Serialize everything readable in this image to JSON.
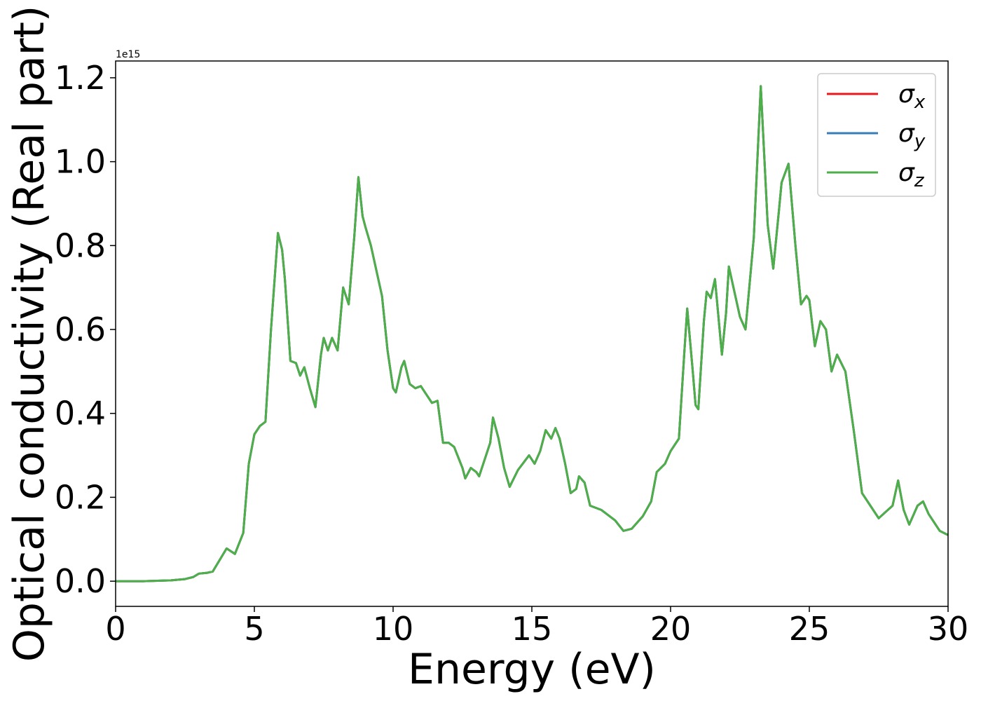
{
  "chart_data": {
    "type": "line",
    "xlabel": "Energy (eV)",
    "ylabel": "Optical conductivity (Real part)",
    "y_offset_label": "1e15",
    "x": [
      0,
      1,
      2,
      2.5,
      2.8,
      3,
      3.3,
      3.5,
      4.0,
      4.3,
      4.6,
      4.8,
      5.0,
      5.2,
      5.4,
      5.6,
      5.85,
      6.0,
      6.1,
      6.3,
      6.5,
      6.65,
      6.8,
      7.0,
      7.2,
      7.4,
      7.5,
      7.65,
      7.8,
      8.0,
      8.2,
      8.4,
      8.6,
      8.75,
      8.9,
      9.0,
      9.2,
      9.5,
      9.6,
      9.8,
      10.0,
      10.1,
      10.3,
      10.4,
      10.6,
      10.8,
      11.0,
      11.2,
      11.4,
      11.6,
      11.8,
      12.0,
      12.2,
      12.5,
      12.6,
      12.8,
      13.0,
      13.1,
      13.3,
      13.5,
      13.6,
      13.8,
      14.0,
      14.2,
      14.5,
      14.9,
      15.1,
      15.3,
      15.5,
      15.7,
      15.85,
      16.0,
      16.2,
      16.4,
      16.6,
      16.7,
      16.9,
      17.1,
      17.5,
      18.0,
      18.3,
      18.6,
      19.0,
      19.3,
      19.5,
      19.8,
      20.0,
      20.3,
      20.5,
      20.6,
      20.8,
      20.9,
      21.0,
      21.2,
      21.3,
      21.45,
      21.6,
      21.85,
      22.0,
      22.1,
      22.3,
      22.5,
      22.7,
      23.0,
      23.25,
      23.5,
      23.7,
      23.9,
      24.0,
      24.25,
      24.5,
      24.7,
      24.9,
      25.0,
      25.2,
      25.4,
      25.6,
      25.8,
      26.0,
      26.3,
      26.6,
      26.9,
      27.2,
      27.5,
      28.0,
      28.2,
      28.4,
      28.6,
      28.9,
      29.1,
      29.3,
      29.7,
      30.0
    ],
    "series": [
      {
        "name": "σx",
        "color": "#e41a1c",
        "values": [
          0,
          0,
          0.002,
          0.005,
          0.01,
          0.018,
          0.02,
          0.023,
          0.078,
          0.065,
          0.115,
          0.28,
          0.35,
          0.37,
          0.38,
          0.6,
          0.83,
          0.79,
          0.72,
          0.525,
          0.52,
          0.49,
          0.51,
          0.46,
          0.415,
          0.54,
          0.58,
          0.55,
          0.58,
          0.55,
          0.7,
          0.66,
          0.82,
          0.963,
          0.87,
          0.845,
          0.8,
          0.71,
          0.68,
          0.55,
          0.46,
          0.45,
          0.51,
          0.525,
          0.47,
          0.46,
          0.465,
          0.445,
          0.425,
          0.43,
          0.33,
          0.33,
          0.32,
          0.27,
          0.245,
          0.27,
          0.26,
          0.25,
          0.29,
          0.33,
          0.39,
          0.34,
          0.27,
          0.225,
          0.265,
          0.3,
          0.28,
          0.31,
          0.36,
          0.34,
          0.365,
          0.34,
          0.28,
          0.21,
          0.22,
          0.25,
          0.235,
          0.18,
          0.17,
          0.145,
          0.12,
          0.125,
          0.155,
          0.19,
          0.26,
          0.28,
          0.31,
          0.34,
          0.55,
          0.65,
          0.5,
          0.42,
          0.41,
          0.62,
          0.69,
          0.675,
          0.72,
          0.54,
          0.64,
          0.75,
          0.69,
          0.63,
          0.6,
          0.82,
          1.18,
          0.85,
          0.745,
          0.88,
          0.95,
          0.995,
          0.8,
          0.66,
          0.68,
          0.67,
          0.56,
          0.62,
          0.6,
          0.5,
          0.54,
          0.5,
          0.36,
          0.21,
          0.18,
          0.15,
          0.18,
          0.24,
          0.17,
          0.135,
          0.18,
          0.19,
          0.16,
          0.12,
          0.11
        ]
      },
      {
        "name": "σy",
        "color": "#377eb8",
        "values": [
          0,
          0,
          0.002,
          0.005,
          0.01,
          0.018,
          0.02,
          0.023,
          0.078,
          0.065,
          0.115,
          0.28,
          0.35,
          0.37,
          0.38,
          0.6,
          0.83,
          0.79,
          0.72,
          0.525,
          0.52,
          0.49,
          0.51,
          0.46,
          0.415,
          0.54,
          0.58,
          0.55,
          0.58,
          0.55,
          0.7,
          0.66,
          0.82,
          0.963,
          0.87,
          0.845,
          0.8,
          0.71,
          0.68,
          0.55,
          0.46,
          0.45,
          0.51,
          0.525,
          0.47,
          0.46,
          0.465,
          0.445,
          0.425,
          0.43,
          0.33,
          0.33,
          0.32,
          0.27,
          0.245,
          0.27,
          0.26,
          0.25,
          0.29,
          0.33,
          0.39,
          0.34,
          0.27,
          0.225,
          0.265,
          0.3,
          0.28,
          0.31,
          0.36,
          0.34,
          0.365,
          0.34,
          0.28,
          0.21,
          0.22,
          0.25,
          0.235,
          0.18,
          0.17,
          0.145,
          0.12,
          0.125,
          0.155,
          0.19,
          0.26,
          0.28,
          0.31,
          0.34,
          0.55,
          0.65,
          0.5,
          0.42,
          0.41,
          0.62,
          0.69,
          0.675,
          0.72,
          0.54,
          0.64,
          0.75,
          0.69,
          0.63,
          0.6,
          0.82,
          1.18,
          0.85,
          0.745,
          0.88,
          0.95,
          0.995,
          0.8,
          0.66,
          0.68,
          0.67,
          0.56,
          0.62,
          0.6,
          0.5,
          0.54,
          0.5,
          0.36,
          0.21,
          0.18,
          0.15,
          0.18,
          0.24,
          0.17,
          0.135,
          0.18,
          0.19,
          0.16,
          0.12,
          0.11
        ]
      },
      {
        "name": "σz",
        "color": "#4daf4a",
        "values": [
          0,
          0,
          0.002,
          0.005,
          0.01,
          0.018,
          0.02,
          0.023,
          0.078,
          0.065,
          0.115,
          0.28,
          0.35,
          0.37,
          0.38,
          0.6,
          0.83,
          0.79,
          0.72,
          0.525,
          0.52,
          0.49,
          0.51,
          0.46,
          0.415,
          0.54,
          0.58,
          0.55,
          0.58,
          0.55,
          0.7,
          0.66,
          0.82,
          0.963,
          0.87,
          0.845,
          0.8,
          0.71,
          0.68,
          0.55,
          0.46,
          0.45,
          0.51,
          0.525,
          0.47,
          0.46,
          0.465,
          0.445,
          0.425,
          0.43,
          0.33,
          0.33,
          0.32,
          0.27,
          0.245,
          0.27,
          0.26,
          0.25,
          0.29,
          0.33,
          0.39,
          0.34,
          0.27,
          0.225,
          0.265,
          0.3,
          0.28,
          0.31,
          0.36,
          0.34,
          0.365,
          0.34,
          0.28,
          0.21,
          0.22,
          0.25,
          0.235,
          0.18,
          0.17,
          0.145,
          0.12,
          0.125,
          0.155,
          0.19,
          0.26,
          0.28,
          0.31,
          0.34,
          0.55,
          0.65,
          0.5,
          0.42,
          0.41,
          0.62,
          0.69,
          0.675,
          0.72,
          0.54,
          0.64,
          0.75,
          0.69,
          0.63,
          0.6,
          0.82,
          1.18,
          0.85,
          0.745,
          0.88,
          0.95,
          0.995,
          0.8,
          0.66,
          0.68,
          0.67,
          0.56,
          0.62,
          0.6,
          0.5,
          0.54,
          0.5,
          0.36,
          0.21,
          0.18,
          0.15,
          0.18,
          0.24,
          0.17,
          0.135,
          0.18,
          0.19,
          0.16,
          0.12,
          0.11
        ]
      }
    ],
    "xlim": [
      0,
      30
    ],
    "xticks": [
      0,
      5,
      10,
      15,
      20,
      25,
      30
    ],
    "ylim": [
      -0.06,
      1.24
    ],
    "yticks": [
      {
        "value": 0,
        "label": "0.0"
      },
      0.2,
      0.4,
      0.6,
      0.8,
      {
        "value": 1,
        "label": "1.0"
      },
      1.2
    ],
    "legend": "upper right",
    "grid": false
  }
}
